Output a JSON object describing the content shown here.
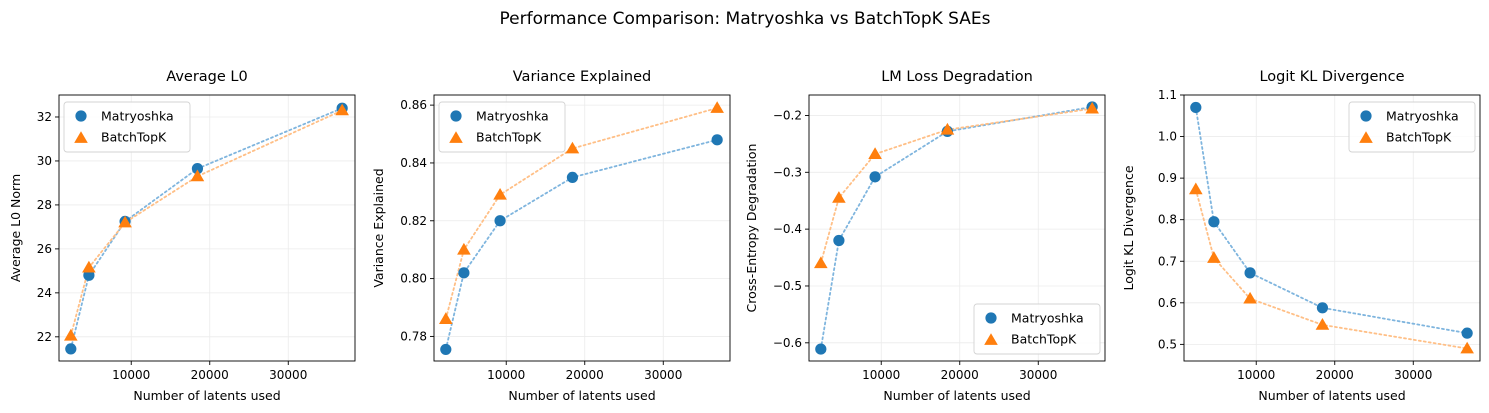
{
  "figure": {
    "suptitle": "Performance Comparison: Matryoshka vs BatchTopK SAEs"
  },
  "colors": {
    "matryoshka": "#1f77b4",
    "matryoshka_line": "#7fb5de",
    "batchtopk": "#ff7f0e",
    "batchtopk_line": "#ffbf86",
    "grid": "#ebebeb",
    "legend_border": "#d3d3d3"
  },
  "chart_data": [
    {
      "type": "scatter",
      "title": "Average L0",
      "xlabel": "Number of latents used",
      "ylabel": "Average L0 Norm",
      "xlim": [
        800,
        38500
      ],
      "ylim": [
        20.9,
        33
      ],
      "xticks": [
        10000,
        20000,
        30000
      ],
      "yticks": [
        22,
        24,
        26,
        28,
        30,
        32
      ],
      "ytick_labels": [
        "22",
        "24",
        "26",
        "28",
        "30",
        "32"
      ],
      "legend": "top-left",
      "x": [
        2304,
        4608,
        9216,
        18432,
        36864
      ],
      "series": [
        {
          "name": "Matryoshka",
          "marker": "circle",
          "values": [
            21.45,
            24.8,
            27.25,
            29.65,
            32.4
          ]
        },
        {
          "name": "BatchTopK",
          "marker": "triangle",
          "values": [
            22.05,
            25.15,
            27.2,
            29.3,
            32.3
          ]
        }
      ]
    },
    {
      "type": "scatter",
      "title": "Variance Explained",
      "xlabel": "Number of latents used",
      "ylabel": "Variance Explained",
      "xlim": [
        800,
        38500
      ],
      "ylim": [
        0.7715,
        0.8635
      ],
      "xticks": [
        10000,
        20000,
        30000
      ],
      "yticks": [
        0.78,
        0.8,
        0.82,
        0.84,
        0.86
      ],
      "ytick_labels": [
        "0.78",
        "0.80",
        "0.82",
        "0.84",
        "0.86"
      ],
      "legend": "top-left",
      "x": [
        2304,
        4608,
        9216,
        18432,
        36864
      ],
      "series": [
        {
          "name": "Matryoshka",
          "marker": "circle",
          "values": [
            0.7755,
            0.802,
            0.82,
            0.835,
            0.848
          ]
        },
        {
          "name": "BatchTopK",
          "marker": "triangle",
          "values": [
            0.786,
            0.81,
            0.829,
            0.845,
            0.859
          ]
        }
      ]
    },
    {
      "type": "scatter",
      "title": "LM Loss Degradation",
      "xlabel": "Number of latents used",
      "ylabel": "Cross-Entropy Degradation",
      "xlim": [
        800,
        38500
      ],
      "ylim": [
        -0.632,
        -0.164
      ],
      "xticks": [
        10000,
        20000,
        30000
      ],
      "yticks": [
        -0.6,
        -0.5,
        -0.4,
        -0.3,
        -0.2
      ],
      "ytick_labels": [
        "−0.6",
        "−0.5",
        "−0.4",
        "−0.3",
        "−0.2"
      ],
      "legend": "bottom-right",
      "x": [
        2304,
        4608,
        9216,
        18432,
        36864
      ],
      "series": [
        {
          "name": "Matryoshka",
          "marker": "circle",
          "values": [
            -0.611,
            -0.42,
            -0.308,
            -0.228,
            -0.185
          ]
        },
        {
          "name": "BatchTopK",
          "marker": "triangle",
          "values": [
            -0.46,
            -0.345,
            -0.268,
            -0.225,
            -0.188
          ]
        }
      ]
    },
    {
      "type": "scatter",
      "title": "Logit KL Divergence",
      "xlabel": "Number of latents used",
      "ylabel": "Logit KL Divergence",
      "xlim": [
        800,
        38500
      ],
      "ylim": [
        0.46,
        1.1
      ],
      "xticks": [
        10000,
        20000,
        30000
      ],
      "yticks": [
        0.5,
        0.6,
        0.7,
        0.8,
        0.9,
        1.0,
        1.1
      ],
      "ytick_labels": [
        "0.5",
        "0.6",
        "0.7",
        "0.8",
        "0.9",
        "1.0",
        "1.1"
      ],
      "legend": "top-right",
      "x": [
        2304,
        4608,
        9216,
        18432,
        36864
      ],
      "series": [
        {
          "name": "Matryoshka",
          "marker": "circle",
          "values": [
            1.07,
            0.795,
            0.672,
            0.588,
            0.527
          ]
        },
        {
          "name": "BatchTopK",
          "marker": "triangle",
          "values": [
            0.873,
            0.708,
            0.61,
            0.547,
            0.49
          ]
        }
      ]
    }
  ]
}
